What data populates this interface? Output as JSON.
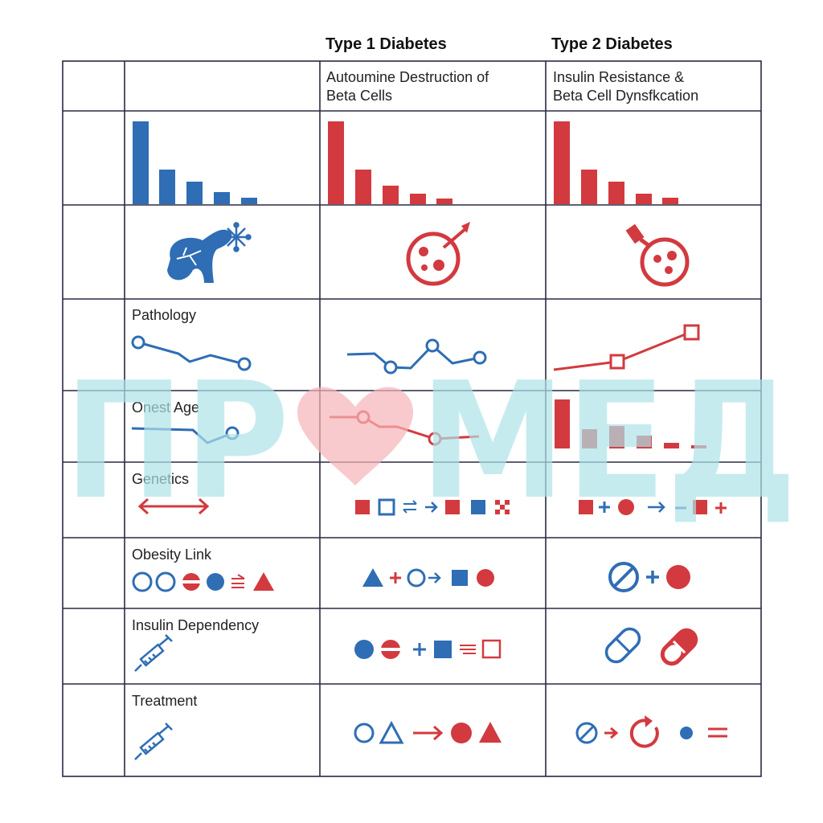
{
  "columns": {
    "type1": "Type 1 Diabetes",
    "type2": "Type 2 Diabetes"
  },
  "header_row": {
    "type1_line1": "Autoumine Destruction of",
    "type1_line2": "Beta Cells",
    "type2_line1": "Insulin Resistance &",
    "type2_line2": "Beta Cell Dynsfkcation"
  },
  "rows": {
    "pathology": "Pathology",
    "onset_age": "Onest Age",
    "genetics": "Genetics",
    "obesity": "Obesity Link",
    "insulin": "Insulin Dependency",
    "treatment": "Treatment"
  },
  "watermark": "ПРОМЕД",
  "colors": {
    "blue": "#2f6db5",
    "red": "#d23a3f",
    "grid": "#2a2a44",
    "watermark_teal": "#aee2e8",
    "watermark_pink": "#f6b3b8"
  },
  "icons": {
    "row_icons": [
      "pancreas-icon",
      "snowflake-icon",
      "cell-arrow-icon",
      "cell-plug-icon",
      "syringe-icon",
      "capsule-icon"
    ]
  }
}
